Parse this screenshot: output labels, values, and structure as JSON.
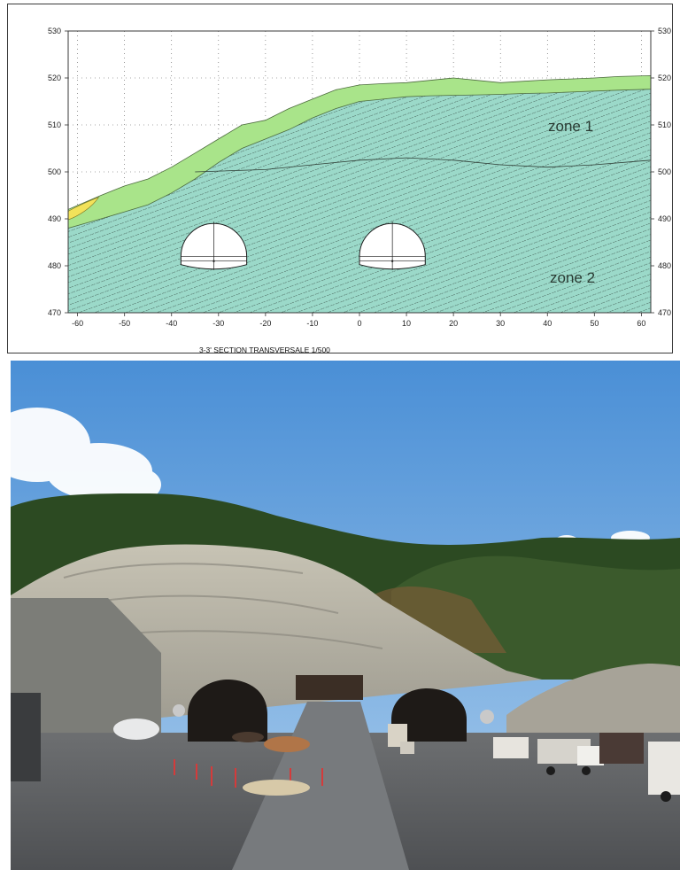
{
  "section": {
    "title": "3-3' SECTION TRANSVERSALE 1/500",
    "zone_labels": [
      "zone 1",
      "zone 2"
    ],
    "x_ticks": [
      -60,
      -50,
      -40,
      -30,
      -20,
      -10,
      0,
      10,
      20,
      30,
      40,
      50,
      60
    ],
    "y_ticks": [
      470,
      480,
      490,
      500,
      510,
      520,
      530
    ],
    "colors": {
      "topsoil": "#a9e48a",
      "rock": "#9bd9c9",
      "lens": "#f2e25a",
      "hatch": "#1f2a25",
      "frame": "#3a3a3a"
    }
  },
  "chart_data": {
    "type": "area",
    "title": "3-3' SECTION TRANSVERSALE 1/500",
    "xlim": [
      -62,
      62
    ],
    "ylim": [
      470,
      530
    ],
    "grid": true,
    "series": [
      {
        "name": "zone 1",
        "x": [
          -62,
          -55,
          -50,
          -45,
          -40,
          -35,
          -30,
          -25,
          -20,
          -15,
          -10,
          -5,
          0,
          5,
          10,
          15,
          20,
          25,
          30,
          35,
          40,
          45,
          50,
          55,
          62
        ],
        "y": [
          492,
          495,
          497,
          498.5,
          501,
          504,
          507,
          510,
          511,
          513.5,
          515.5,
          517.5,
          518.5,
          518.8,
          519,
          519.5,
          520,
          519.5,
          519,
          519.3,
          519.6,
          519.8,
          520,
          520.3,
          520.5
        ]
      },
      {
        "name": "zone 2",
        "x": [
          -62,
          -55,
          -50,
          -45,
          -40,
          -35,
          -30,
          -25,
          -20,
          -15,
          -10,
          -5,
          0,
          5,
          10,
          15,
          20,
          25,
          30,
          35,
          40,
          45,
          50,
          55,
          62
        ],
        "y": [
          488,
          490,
          491.5,
          493,
          495.5,
          498.5,
          502,
          505,
          507,
          509,
          511.5,
          513.5,
          515,
          515.5,
          516,
          516.2,
          516.3,
          516.4,
          516.5,
          516.7,
          516.8,
          517,
          517.2,
          517.4,
          517.6
        ]
      },
      {
        "x": [
          -35,
          -20,
          -10,
          0,
          10,
          20,
          30,
          40,
          50,
          62
        ],
        "y": [
          500,
          500.5,
          501.5,
          502.5,
          503,
          502.5,
          501.5,
          501,
          501.5,
          502.5
        ]
      }
    ],
    "tunnels": [
      {
        "center_x": -31,
        "floor_y": 481,
        "crown_y": 489,
        "width": 14
      },
      {
        "center_x": 7,
        "floor_y": 481,
        "crown_y": 489,
        "width": 14
      }
    ]
  },
  "photo": {
    "colors": {
      "sky_top": "#4a8fd6",
      "sky_bottom": "#a9ccec",
      "forest": "#2c4a22",
      "cut_slope": "#b7b3a6",
      "ground": "#5c5e61",
      "portal": "#1e1a17"
    }
  }
}
